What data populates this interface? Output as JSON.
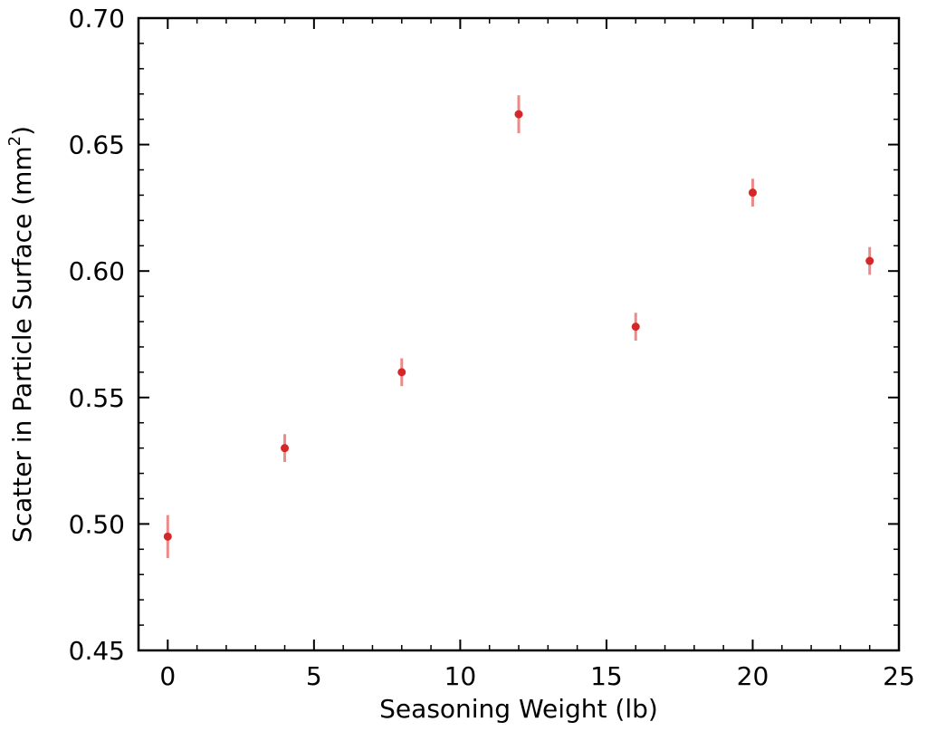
{
  "chart_data": {
    "type": "scatter",
    "xlabel": "Seasoning Weight (lb)",
    "ylabel_main": "Scatter in Particle Surface (mm",
    "ylabel_sup": "2",
    "ylabel_close": ")",
    "xlim": [
      -1,
      25
    ],
    "ylim": [
      0.45,
      0.7
    ],
    "xticks": [
      0,
      5,
      10,
      15,
      20,
      25
    ],
    "xtick_labels": [
      "0",
      "5",
      "10",
      "15",
      "20",
      "25"
    ],
    "yticks": [
      0.45,
      0.5,
      0.55,
      0.6,
      0.65,
      0.7
    ],
    "ytick_labels": [
      "0.45",
      "0.50",
      "0.55",
      "0.60",
      "0.65",
      "0.70"
    ],
    "grid": false,
    "series": [
      {
        "color": "#d62728",
        "errorbar_color": "#ec8a8a",
        "x": [
          0,
          4,
          8,
          12,
          16,
          20,
          24
        ],
        "y": [
          0.495,
          0.53,
          0.56,
          0.662,
          0.578,
          0.631,
          0.604
        ],
        "yerr": [
          0.0085,
          0.0055,
          0.0055,
          0.0075,
          0.0055,
          0.0055,
          0.0055
        ]
      }
    ]
  }
}
